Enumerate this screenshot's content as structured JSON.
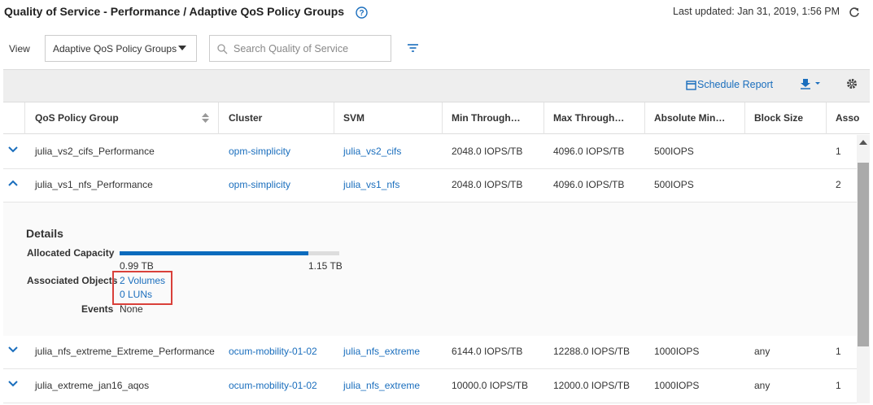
{
  "header": {
    "title": "Quality of Service - Performance / Adaptive QoS Policy Groups",
    "last_updated": "Last updated: Jan 31, 2019, 1:56 PM"
  },
  "toolbar": {
    "view_label": "View",
    "view_value": "Adaptive QoS Policy Groups",
    "search_placeholder": "Search Quality of Service",
    "schedule_report": "Schedule Report"
  },
  "table": {
    "columns": [
      "QoS Policy Group",
      "Cluster",
      "SVM",
      "Min Through…",
      "Max Through…",
      "Absolute Min…",
      "Block Size",
      "Asso"
    ],
    "rows": [
      {
        "expanded": false,
        "cells": [
          "julia_vs2_cifs_Performance",
          "opm-simplicity",
          "julia_vs2_cifs",
          "2048.0 IOPS/TB",
          "4096.0 IOPS/TB",
          "500IOPS",
          null,
          "1"
        ]
      },
      {
        "expanded": true,
        "cells": [
          "julia_vs1_nfs_Performance",
          "opm-simplicity",
          "julia_vs1_nfs",
          "2048.0 IOPS/TB",
          "4096.0 IOPS/TB",
          "500IOPS",
          null,
          "2"
        ]
      },
      {
        "expanded": false,
        "cells": [
          "julia_nfs_extreme_Extreme_Performance",
          "ocum-mobility-01-02",
          "julia_nfs_extreme",
          "6144.0 IOPS/TB",
          "12288.0 IOPS/TB",
          "1000IOPS",
          "any",
          "1"
        ]
      },
      {
        "expanded": false,
        "cells": [
          "julia_extreme_jan16_aqos",
          "ocum-mobility-01-02",
          "julia_nfs_extreme",
          "10000.0 IOPS/TB",
          "12000.0 IOPS/TB",
          "1000IOPS",
          "any",
          "1"
        ]
      }
    ]
  },
  "details": {
    "title": "Details",
    "allocated_label": "Allocated Capacity",
    "used": {
      "value": 0.99,
      "label": "0.99 TB"
    },
    "total": {
      "value": 1.15,
      "label": "1.15 TB"
    },
    "associated_label": "Associated Objects",
    "volumes": "2 Volumes",
    "luns": "0 LUNs",
    "events_label": "Events",
    "events_value": "None"
  }
}
